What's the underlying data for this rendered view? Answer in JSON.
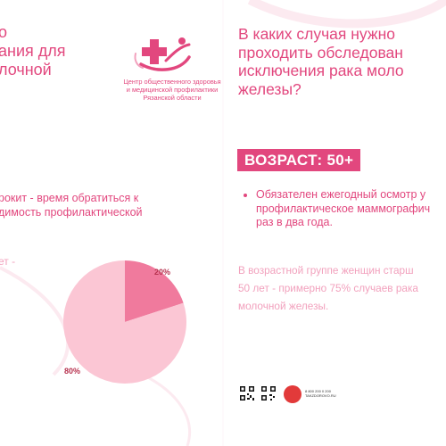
{
  "left_heading": {
    "lines": [
      "о",
      "ания для",
      "лочной"
    ]
  },
  "logo": {
    "caption_lines": [
      "Центр общественного здоровья",
      "и медицинской профилактики",
      "Рязанской области"
    ]
  },
  "right_heading": {
    "lines": [
      "В каких случая нужно",
      "проходить обследован",
      "исключения рака моло",
      "железы?"
    ]
  },
  "age_badge": {
    "label": "ВОЗРАСТ: 50+"
  },
  "bullet": {
    "lines": [
      "Обязателен ежегодный осмотр у",
      "профилактическое маммографич",
      "раз в два года."
    ]
  },
  "right_paragraph": {
    "lines": [
      "В возрастной группе женщин старш",
      "50 лет - примерно 75% случаев рака",
      "молочной железы."
    ]
  },
  "left_paragraph": {
    "lines": [
      "рокит - время обратиться к",
      "димость профилактической"
    ]
  },
  "left_fragment": {
    "text": "ет -"
  },
  "chart_data": {
    "type": "pie",
    "categories": [
      "",
      ""
    ],
    "values": [
      20,
      80
    ],
    "data_labels": [
      "20%",
      "80%"
    ],
    "colors": [
      "#f07a9d",
      "#fbc6d4"
    ]
  },
  "footer": {
    "text_lines": [
      "8 800 200 0 200",
      "TAKZDOROVO.RU"
    ]
  },
  "colors": {
    "accent": "#e2477e",
    "light_pink": "#f2a1bd",
    "dark_label": "#b7324f"
  }
}
